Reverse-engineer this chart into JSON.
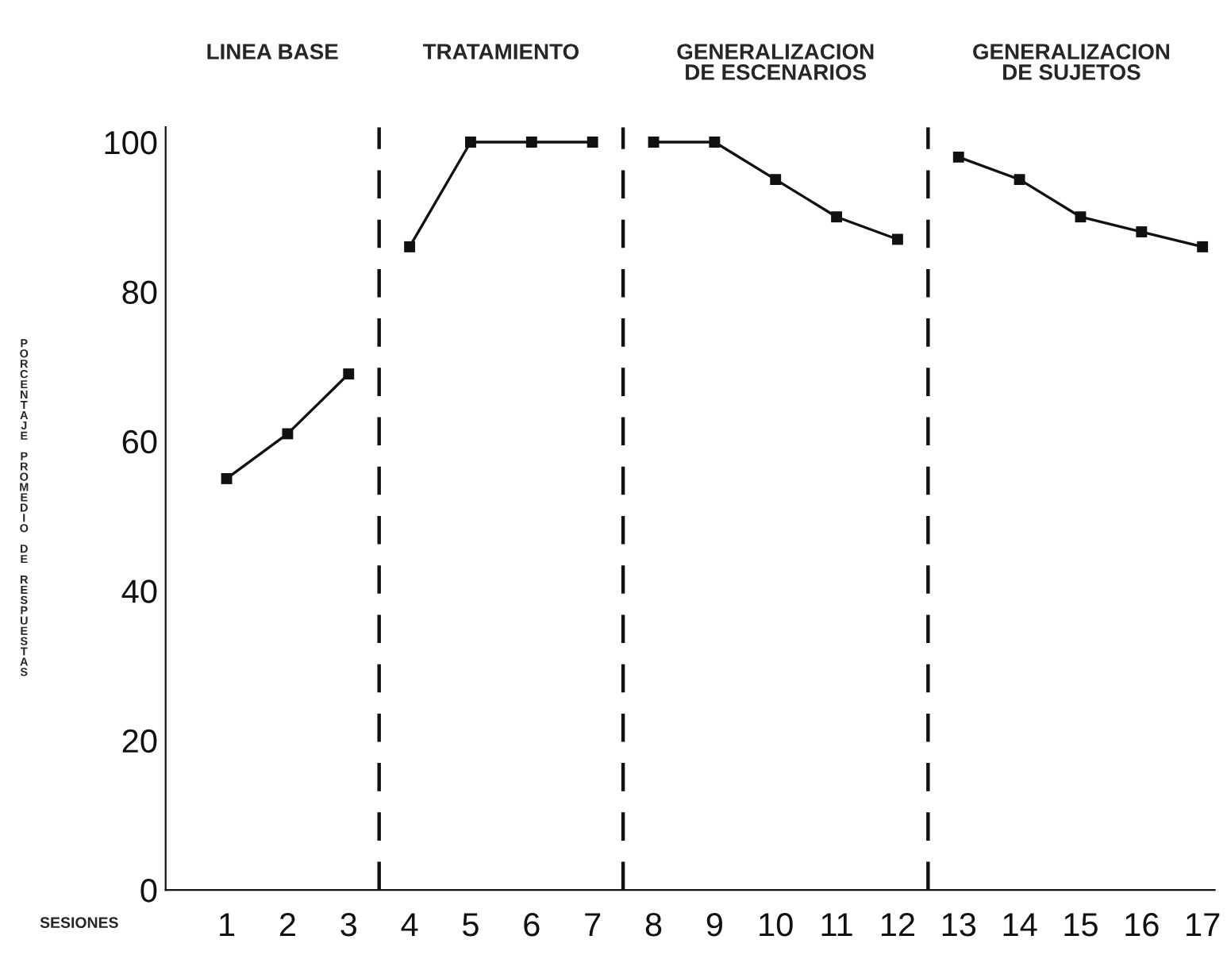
{
  "chart_data": {
    "type": "line",
    "xlabel": "SESIONES",
    "ylabel": "PORCENTAJE PROMEDIO DE RESPUESTAS",
    "annotations": [
      "LINEA BASE",
      "TRATAMIENTO",
      "GENERALIZACION\nDE ESCENARIOS",
      "GENERALIZACION\nDE SUJETOS"
    ],
    "x": [
      1,
      2,
      3,
      4,
      5,
      6,
      7,
      8,
      9,
      10,
      11,
      12,
      13,
      14,
      15,
      16,
      17
    ],
    "series": [
      {
        "color": "#111111",
        "values": [
          55,
          61,
          69,
          null,
          null,
          null,
          null,
          null,
          null,
          null,
          null,
          null,
          null,
          null,
          null,
          null,
          null
        ]
      },
      {
        "color": "#111111",
        "values": [
          null,
          null,
          null,
          86,
          100,
          100,
          100,
          null,
          null,
          null,
          null,
          null,
          null,
          null,
          null,
          null,
          null
        ]
      },
      {
        "color": "#111111",
        "values": [
          null,
          null,
          null,
          null,
          null,
          null,
          null,
          100,
          100,
          95,
          90,
          87,
          null,
          null,
          null,
          null,
          null
        ]
      },
      {
        "color": "#111111",
        "values": [
          null,
          null,
          null,
          null,
          null,
          null,
          null,
          null,
          null,
          null,
          null,
          null,
          98,
          95,
          90,
          88,
          86
        ]
      }
    ],
    "xlim": [
      0,
      17.2
    ],
    "xticks": [
      1,
      2,
      3,
      4,
      5,
      6,
      7,
      8,
      9,
      10,
      11,
      12,
      13,
      14,
      15,
      16,
      17
    ],
    "ylim": [
      0,
      102
    ],
    "yticks": [
      0,
      20,
      40,
      60,
      80,
      100
    ],
    "ref_lines": [
      {
        "axis": "x",
        "value": 3.5,
        "color": "#111111",
        "line_style": "dashed"
      },
      {
        "axis": "x",
        "value": 7.5,
        "color": "#111111",
        "line_style": "dashed"
      },
      {
        "axis": "x",
        "value": 12.5,
        "color": "#111111",
        "line_style": "dashed"
      }
    ],
    "marker": "square",
    "line_style": "solid",
    "grid": false,
    "legend": false
  }
}
